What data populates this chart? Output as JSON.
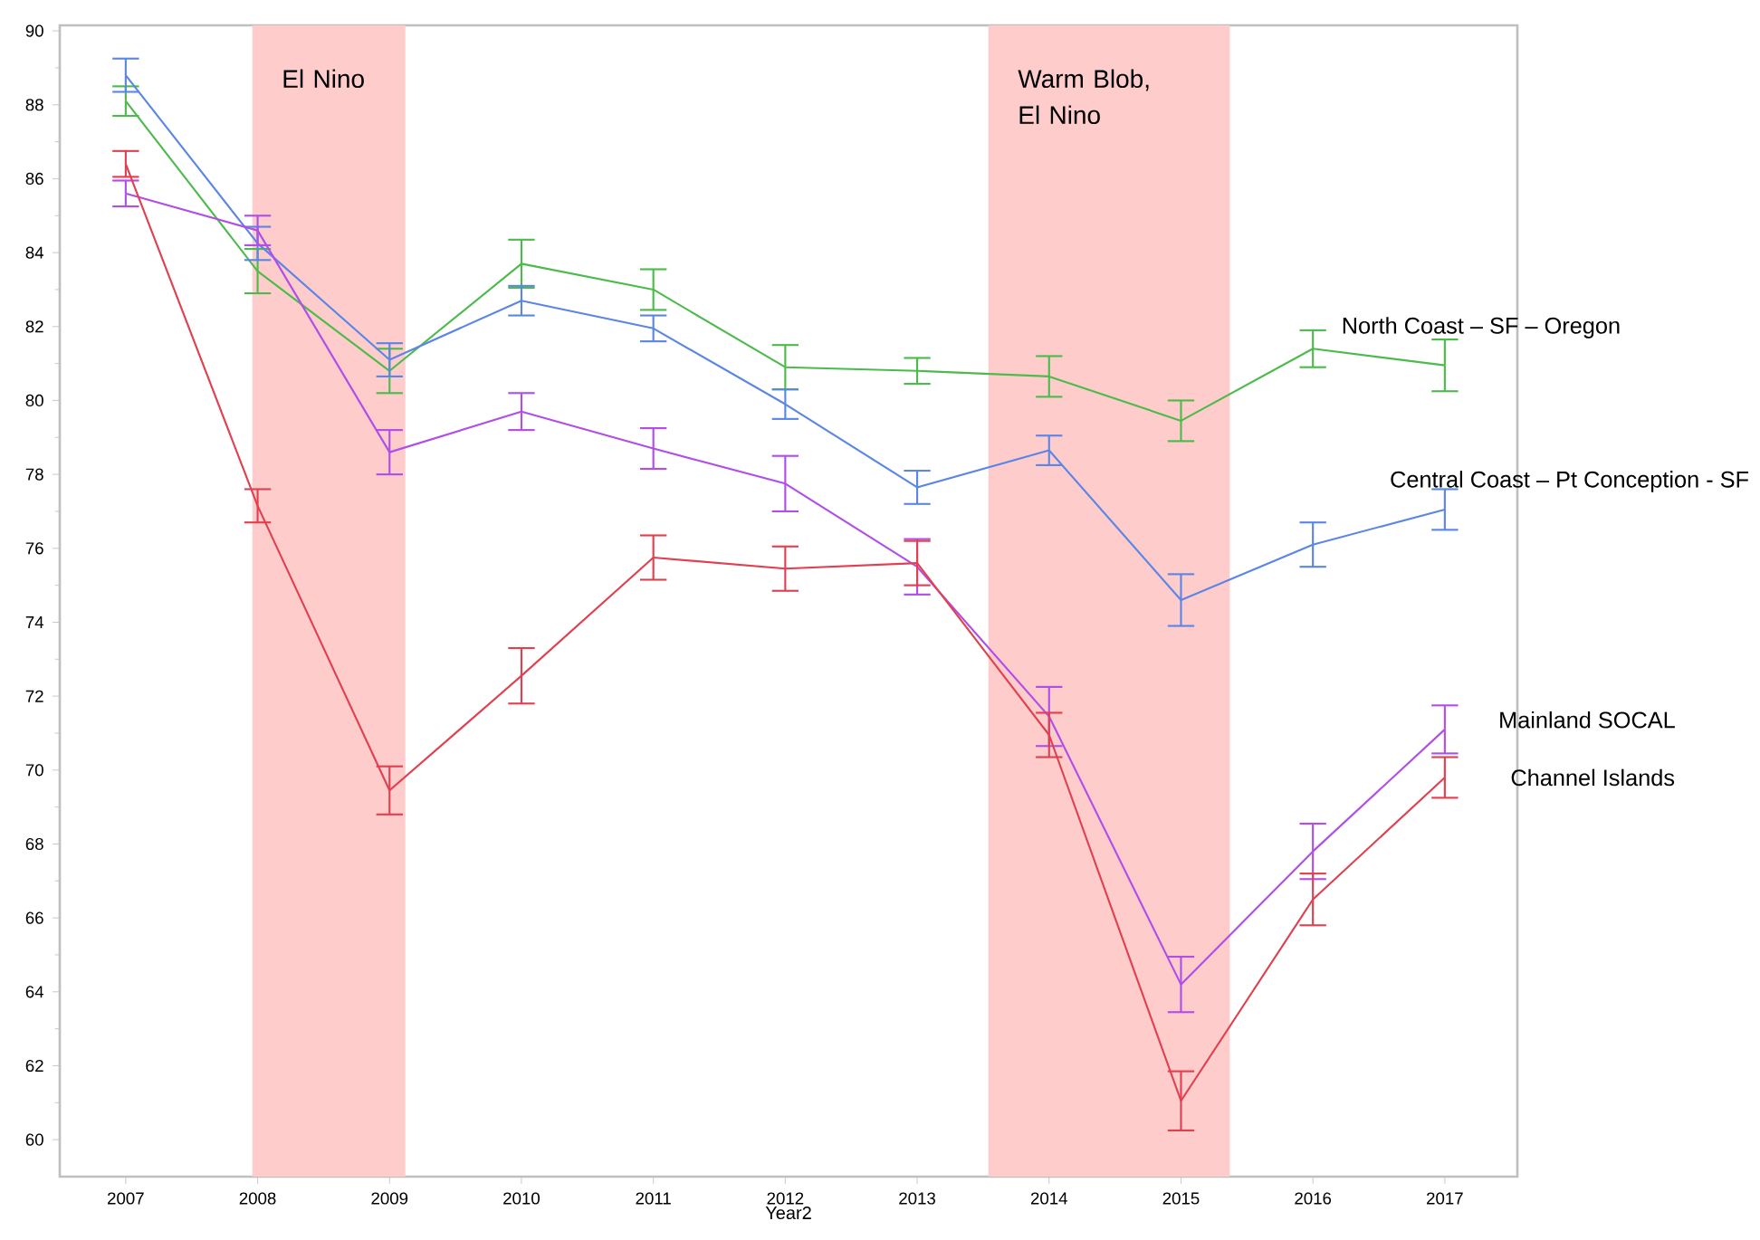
{
  "chart_data": {
    "type": "line",
    "xlabel": "Year2",
    "x": [
      2007,
      2008,
      2009,
      2010,
      2011,
      2012,
      2013,
      2014,
      2015,
      2016,
      2017
    ],
    "series": [
      {
        "name": "North Coast – SF – Oregon",
        "color": "#4cbb4c",
        "values": [
          88.1,
          83.5,
          80.8,
          83.7,
          83.0,
          80.9,
          80.8,
          80.65,
          79.45,
          81.4,
          80.95
        ],
        "errors": [
          0.4,
          0.6,
          0.6,
          0.65,
          0.55,
          0.6,
          0.35,
          0.55,
          0.55,
          0.5,
          0.7
        ]
      },
      {
        "name": "Central Coast – Pt Conception - SF",
        "color": "#5b86e5",
        "values": [
          88.8,
          84.25,
          81.1,
          82.7,
          81.95,
          79.9,
          77.65,
          78.65,
          74.6,
          76.1,
          77.05
        ],
        "errors": [
          0.45,
          0.45,
          0.45,
          0.4,
          0.35,
          0.4,
          0.45,
          0.4,
          0.7,
          0.6,
          0.55
        ]
      },
      {
        "name": "Mainland SOCAL",
        "color": "#b04ee8",
        "values": [
          85.6,
          84.6,
          78.6,
          79.7,
          78.7,
          77.75,
          75.5,
          71.45,
          64.2,
          67.8,
          71.1
        ],
        "errors": [
          0.35,
          0.4,
          0.6,
          0.5,
          0.55,
          0.75,
          0.75,
          0.8,
          0.75,
          0.75,
          0.65
        ]
      },
      {
        "name": "Channel Islands",
        "color": "#e0404f",
        "values": [
          86.4,
          77.15,
          69.45,
          72.55,
          75.75,
          75.45,
          75.6,
          70.95,
          61.05,
          66.5,
          69.8
        ],
        "errors": [
          0.35,
          0.45,
          0.65,
          0.75,
          0.6,
          0.6,
          0.6,
          0.6,
          0.8,
          0.7,
          0.55
        ]
      }
    ],
    "bands": [
      {
        "axis": "x",
        "from": 2007.96,
        "to": 2009.12,
        "label": "El Nino",
        "color": "#ffcccc"
      },
      {
        "axis": "x",
        "from": 2013.54,
        "to": 2015.37,
        "label": "Warm Blob, El Nino",
        "color": "#ffcccc"
      }
    ],
    "xlim": [
      2006.5,
      2017.55
    ],
    "ylim": [
      59,
      90.15
    ],
    "xticks": [
      2007,
      2008,
      2009,
      2010,
      2011,
      2012,
      2013,
      2014,
      2015,
      2016,
      2017
    ],
    "yticks": [
      60,
      62,
      64,
      66,
      68,
      70,
      72,
      74,
      76,
      78,
      80,
      82,
      84,
      86,
      88,
      90
    ],
    "grid": false,
    "marker": "none",
    "line_style": "solid"
  }
}
